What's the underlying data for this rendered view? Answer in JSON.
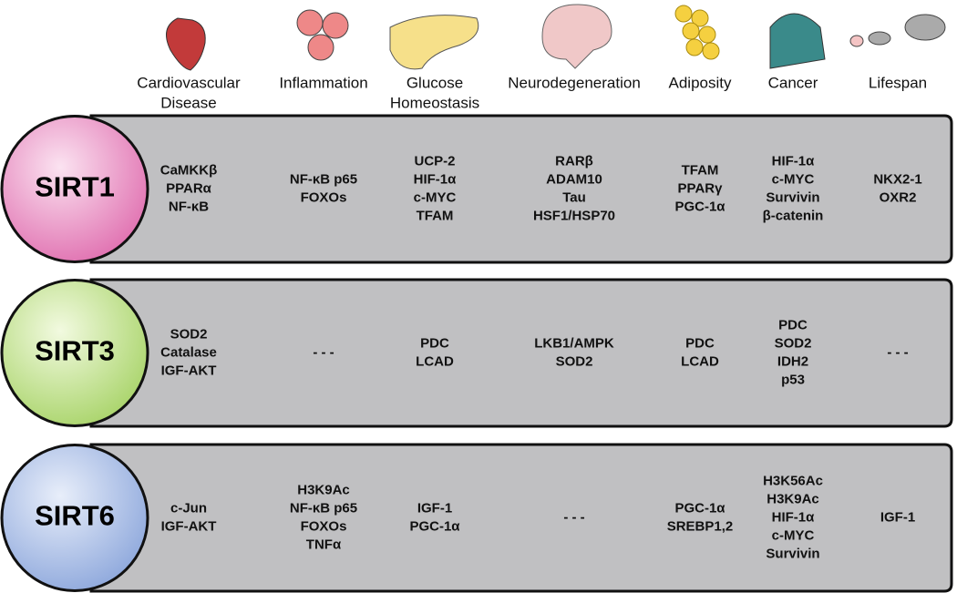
{
  "columns": [
    {
      "label": [
        "Cardiovascular",
        "Disease"
      ]
    },
    {
      "label": [
        "Inflammation"
      ]
    },
    {
      "label": [
        "Glucose",
        "Homeostasis"
      ]
    },
    {
      "label": [
        "Neurodegeneration"
      ]
    },
    {
      "label": [
        "Adiposity"
      ]
    },
    {
      "label": [
        "Cancer"
      ]
    },
    {
      "label": [
        "Lifespan"
      ]
    }
  ],
  "rows": [
    {
      "name": "SIRT1",
      "cells": [
        [
          "CaMKKβ",
          "PPARα",
          "NF-κB"
        ],
        [
          "NF-κB p65",
          "FOXOs"
        ],
        [
          "UCP-2",
          "HIF-1α",
          "c-MYC",
          "TFAM"
        ],
        [
          "RARβ",
          "ADAM10",
          "Tau",
          "HSF1/HSP70"
        ],
        [
          "TFAM",
          "PPARγ",
          "PGC-1α"
        ],
        [
          "HIF-1α",
          "c-MYC",
          "Survivin",
          "β-catenin"
        ],
        [
          "NKX2-1",
          "OXR2"
        ]
      ]
    },
    {
      "name": "SIRT3",
      "cells": [
        [
          "SOD2",
          "Catalase",
          "IGF-AKT"
        ],
        [
          "- - -"
        ],
        [
          "PDC",
          "LCAD"
        ],
        [
          "LKB1/AMPK",
          "SOD2"
        ],
        [
          "PDC",
          "LCAD"
        ],
        [
          "PDC",
          "SOD2",
          "IDH2",
          "p53"
        ],
        [
          "- - -"
        ]
      ]
    },
    {
      "name": "SIRT6",
      "cells": [
        [
          "c-Jun",
          "IGF-AKT"
        ],
        [
          "H3K9Ac",
          "NF-κB p65",
          "FOXOs",
          "TNFα"
        ],
        [
          "IGF-1",
          "PGC-1α"
        ],
        [
          "- - -"
        ],
        [
          "PGC-1α",
          "SREBP1,2"
        ],
        [
          "H3K56Ac",
          "H3K9Ac",
          "HIF-1α",
          "c-MYC",
          "Survivin"
        ],
        [
          "IGF-1"
        ]
      ]
    }
  ]
}
